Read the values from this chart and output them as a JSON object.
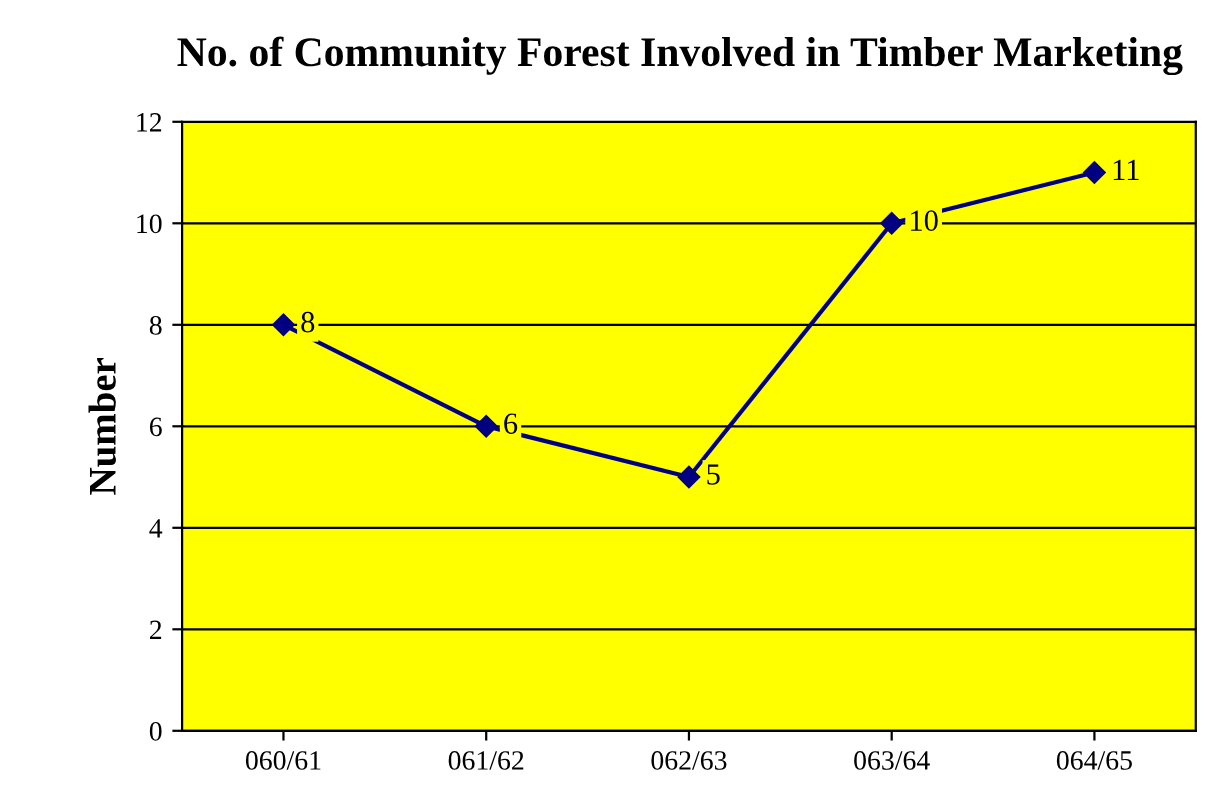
{
  "chart_data": {
    "type": "line",
    "title": "No. of Community Forest Involved in Timber Marketing",
    "ylabel": "Number",
    "categories": [
      "060/61",
      "061/62",
      "062/63",
      "063/64",
      "064/65"
    ],
    "series": [
      {
        "color": "#000080",
        "values": [
          8,
          6,
          5,
          10,
          11
        ]
      }
    ],
    "ylim": [
      0,
      12
    ],
    "yticks": [
      0,
      2,
      4,
      6,
      8,
      10,
      12
    ],
    "grid": "y",
    "marker": "diamond",
    "line_style": "solid",
    "data_labels": true,
    "legend": false
  }
}
